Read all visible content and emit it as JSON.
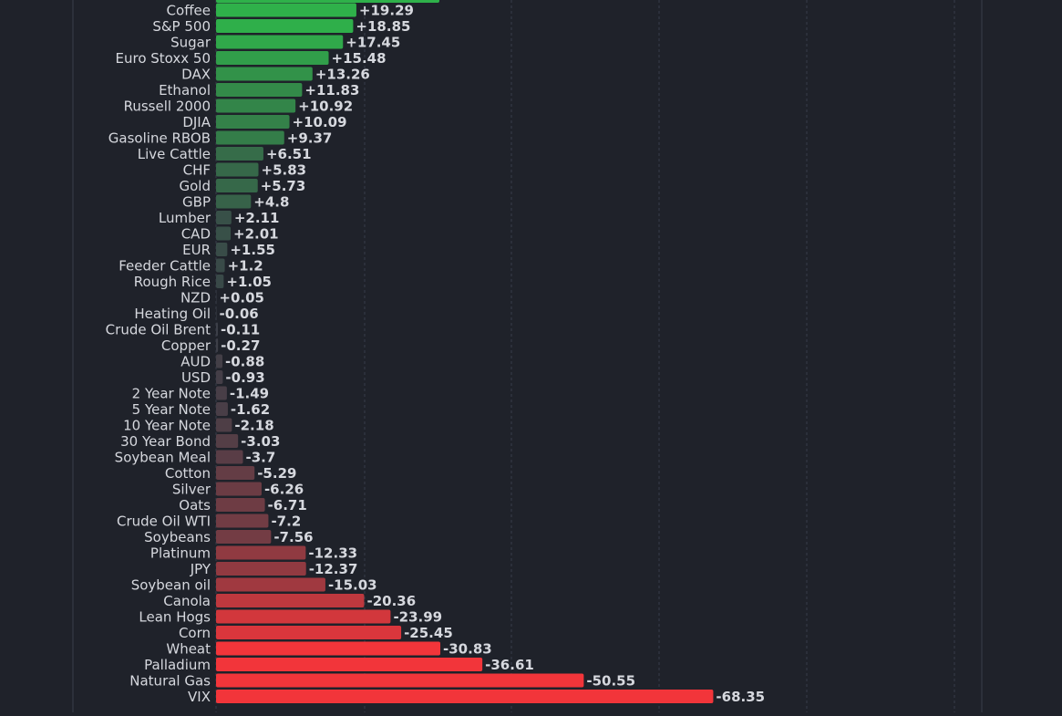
{
  "chart_data": {
    "type": "bar",
    "orientation": "horizontal",
    "grid": true,
    "categories": [
      "Coffee",
      "S&P 500",
      "Sugar",
      "Euro Stoxx 50",
      "DAX",
      "Ethanol",
      "Russell 2000",
      "DJIA",
      "Gasoline RBOB",
      "Live Cattle",
      "CHF",
      "Gold",
      "GBP",
      "Lumber",
      "CAD",
      "EUR",
      "Feeder Cattle",
      "Rough Rice",
      "NZD",
      "Heating Oil",
      "Crude Oil Brent",
      "Copper",
      "AUD",
      "USD",
      "2 Year Note",
      "5 Year Note",
      "10 Year Note",
      "30 Year Bond",
      "Soybean Meal",
      "Cotton",
      "Silver",
      "Oats",
      "Crude Oil WTI",
      "Soybeans",
      "Platinum",
      "JPY",
      "Soybean oil",
      "Canola",
      "Lean Hogs",
      "Corn",
      "Wheat",
      "Palladium",
      "Natural Gas",
      "VIX"
    ],
    "values": [
      19.29,
      18.85,
      17.45,
      15.48,
      13.26,
      11.83,
      10.92,
      10.09,
      9.37,
      6.51,
      5.83,
      5.73,
      4.8,
      2.11,
      2.01,
      1.55,
      1.2,
      1.05,
      0.05,
      -0.06,
      -0.11,
      -0.27,
      -0.88,
      -0.93,
      -1.49,
      -1.62,
      -2.18,
      -3.03,
      -3.7,
      -5.29,
      -6.26,
      -6.71,
      -7.2,
      -7.56,
      -12.33,
      -12.37,
      -15.03,
      -20.36,
      -23.99,
      -25.45,
      -30.83,
      -36.61,
      -50.55,
      -68.35
    ],
    "labels": [
      "+19.29",
      "+18.85",
      "+17.45",
      "+15.48",
      "+13.26",
      "+11.83",
      "+10.92",
      "+10.09",
      "+9.37",
      "+6.51",
      "+5.83",
      "+5.73",
      "+4.8",
      "+2.11",
      "+2.01",
      "+1.55",
      "+1.2",
      "+1.05",
      "+0.05",
      "-0.06",
      "-0.11",
      "-0.27",
      "-0.88",
      "-0.93",
      "-1.49",
      "-1.62",
      "-2.18",
      "-3.03",
      "-3.7",
      "-5.29",
      "-6.26",
      "-6.71",
      "-7.2",
      "-7.56",
      "-12.33",
      "-12.37",
      "-15.03",
      "-20.36",
      "-23.99",
      "-25.45",
      "-30.83",
      "-36.61",
      "-50.55",
      "-68.35"
    ],
    "title": "",
    "xlabel": "",
    "ylabel": "",
    "colors": {
      "positive_strong": "#2fb14a",
      "positive_weak": "#3b4a48",
      "neutral": "#3a3f48",
      "negative_weak": "#4a3f4c",
      "negative_strong": "#f2353a",
      "background": "#1f222a",
      "grid": "#373c49",
      "text": "#d6d8de"
    }
  }
}
